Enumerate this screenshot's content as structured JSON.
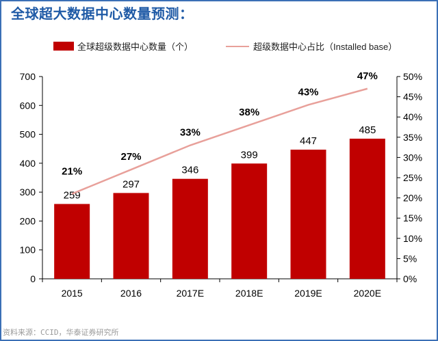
{
  "title": "全球超大数据中心数量预测：",
  "source_note": "资料来源：CCID，华泰证券研究所",
  "colors": {
    "bar": "#c00000",
    "line": "#e8a09a",
    "title": "#1f5aa6",
    "frame": "#3b6fb6"
  },
  "chart_data": {
    "type": "bar",
    "categories": [
      "2015",
      "2016",
      "2017E",
      "2018E",
      "2019E",
      "2020E"
    ],
    "series": [
      {
        "name": "全球超级数据中心数量（个）",
        "type": "bar",
        "axis": "left",
        "values": [
          259,
          297,
          346,
          399,
          447,
          485
        ],
        "labels": [
          "259",
          "297",
          "346",
          "399",
          "447",
          "485"
        ]
      },
      {
        "name": "超级数据中心占比（Installed base）",
        "type": "line",
        "axis": "right",
        "values": [
          21,
          27,
          33,
          38,
          43,
          47
        ],
        "labels": [
          "21%",
          "27%",
          "33%",
          "38%",
          "43%",
          "47%"
        ]
      }
    ],
    "ylim_left": [
      0,
      700
    ],
    "yticks_left": [
      "0",
      "100",
      "200",
      "300",
      "400",
      "500",
      "600",
      "700"
    ],
    "ylim_right": [
      0,
      50
    ],
    "yticks_right": [
      "0%",
      "5%",
      "10%",
      "15%",
      "20%",
      "25%",
      "30%",
      "35%",
      "40%",
      "45%",
      "50%"
    ],
    "legend_position": "top",
    "grid": false
  }
}
